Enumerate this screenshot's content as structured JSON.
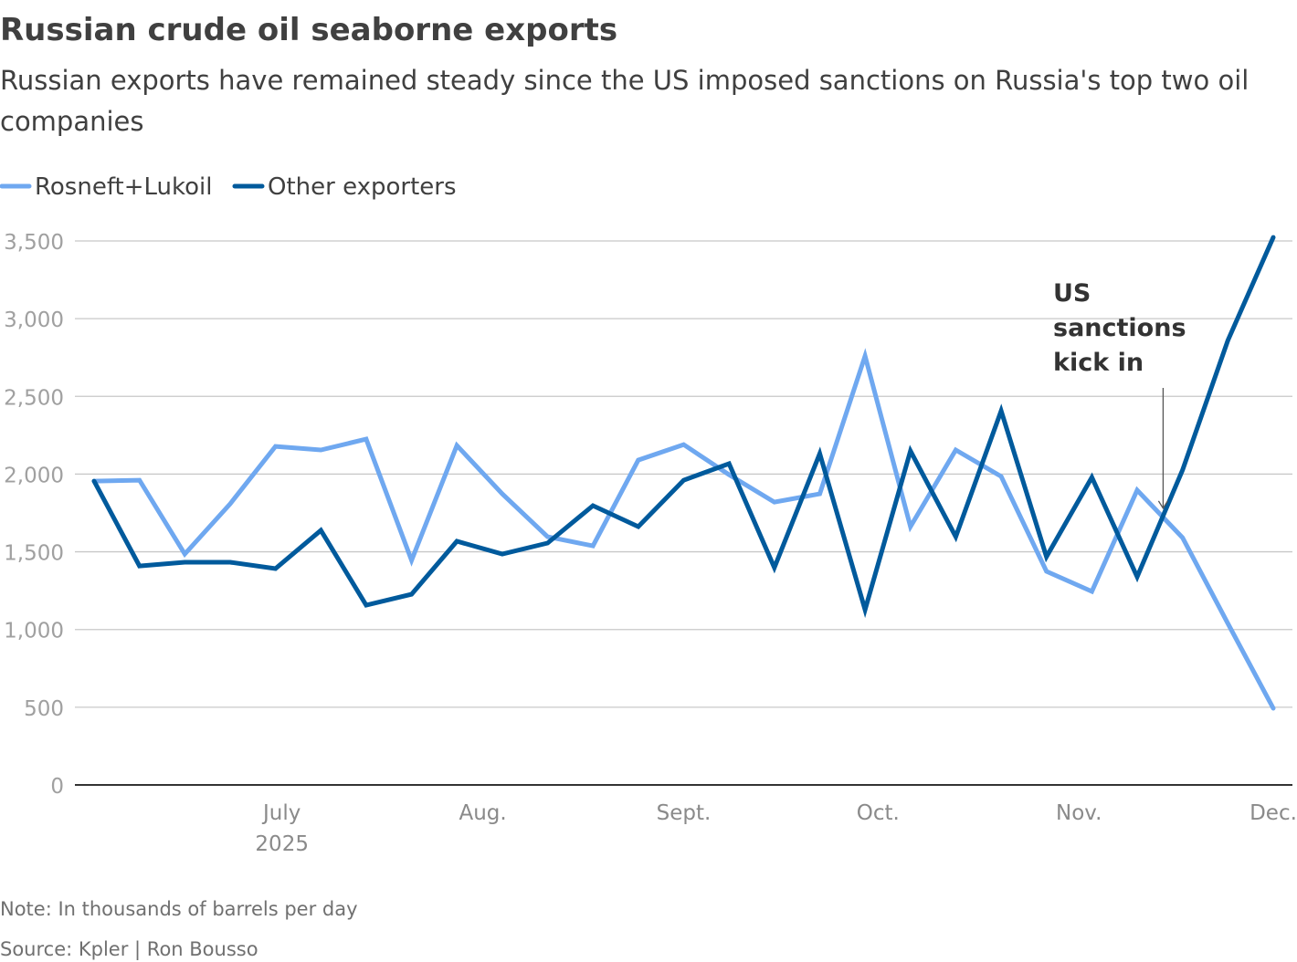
{
  "chart_data": {
    "type": "line",
    "title": "Russian crude oil seaborne exports",
    "subtitle_lines": [
      "Russian exports have remained steady since the US imposed sanctions on Russia's top two oil",
      "companies"
    ],
    "xlabel": "",
    "ylabel": "",
    "ylim": [
      0,
      3500
    ],
    "yticks": [
      0,
      500,
      1000,
      1500,
      2000,
      2500,
      3000,
      3500
    ],
    "ytick_labels": [
      "0",
      "500",
      "1,000",
      "1,500",
      "2,000",
      "2,500",
      "3,000",
      "3,500"
    ],
    "grid": true,
    "legend_placement": "top-left",
    "x": [
      "2025-06-02",
      "2025-06-09",
      "2025-06-16",
      "2025-06-23",
      "2025-06-30",
      "2025-07-07",
      "2025-07-14",
      "2025-07-21",
      "2025-07-28",
      "2025-08-04",
      "2025-08-11",
      "2025-08-18",
      "2025-08-25",
      "2025-09-01",
      "2025-09-08",
      "2025-09-15",
      "2025-09-22",
      "2025-09-29",
      "2025-10-06",
      "2025-10-13",
      "2025-10-20",
      "2025-10-27",
      "2025-11-03",
      "2025-11-10",
      "2025-11-17",
      "2025-11-24",
      "2025-12-01"
    ],
    "xticks": [
      {
        "date": "2025-07-01",
        "label": "July",
        "sublabel": "2025"
      },
      {
        "date": "2025-08-01",
        "label": "Aug."
      },
      {
        "date": "2025-09-01",
        "label": "Sept."
      },
      {
        "date": "2025-10-01",
        "label": "Oct."
      },
      {
        "date": "2025-11-01",
        "label": "Nov."
      },
      {
        "date": "2025-12-01",
        "label": "Dec."
      }
    ],
    "series": [
      {
        "name": "Rosneft+Lukoil",
        "color": "#6fa8f0",
        "values": [
          1955,
          1961,
          1486,
          1809,
          2178,
          2155,
          2225,
          1445,
          2184,
          1873,
          1597,
          1538,
          2090,
          2190,
          1996,
          1820,
          1873,
          2760,
          1662,
          2155,
          1985,
          1374,
          1245,
          1897,
          1591,
          1039,
          493
        ]
      },
      {
        "name": "Other exporters",
        "color": "#005a9c",
        "values": [
          1955,
          1409,
          1433,
          1433,
          1392,
          1638,
          1157,
          1227,
          1568,
          1486,
          1556,
          1797,
          1662,
          1961,
          2067,
          1398,
          2132,
          1127,
          2149,
          1597,
          2407,
          1468,
          1979,
          1339,
          2026,
          2860,
          3523
        ]
      }
    ],
    "annotations": [
      {
        "lines": [
          "US",
          "sanctions",
          "kick in"
        ],
        "date": "2025-11-14",
        "value": 1780
      }
    ],
    "note": "Note: In thousands of barrels per day",
    "source": "Source: Kpler | Ron Bousso"
  }
}
